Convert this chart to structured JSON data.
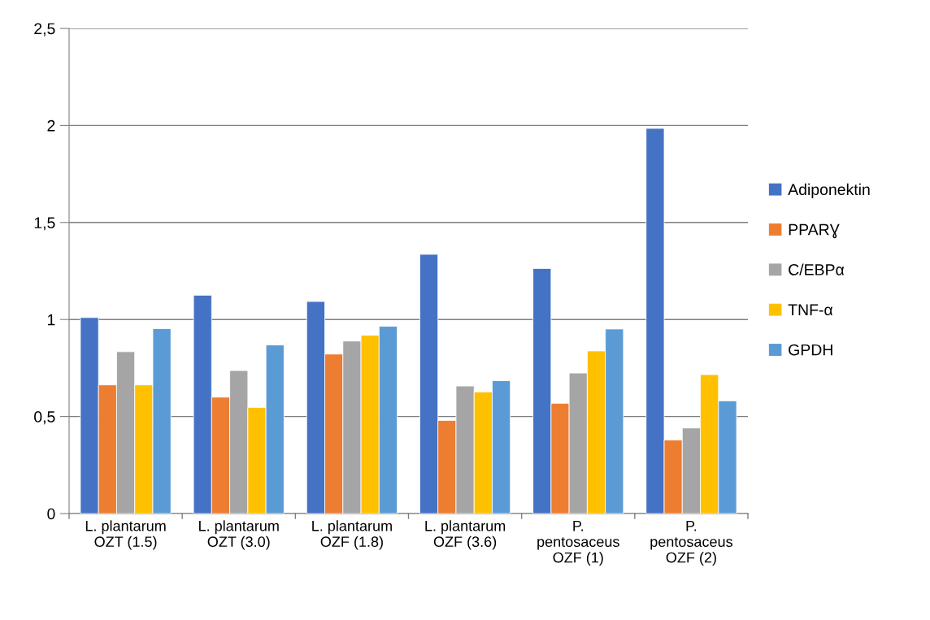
{
  "chart_data": {
    "type": "bar",
    "categories": [
      "L. plantarum\nOZT (1.5)",
      "L. plantarum\nOZT (3.0)",
      "L. plantarum\nOZF (1.8)",
      "L. plantarum\nOZF (3.6)",
      "P.\npentosaceus\nOZF (1)",
      "P.\npentosaceus\nOZF (2)"
    ],
    "series": [
      {
        "name": "Adiponektin",
        "color": "#4472c4",
        "values": [
          1.01,
          1.125,
          1.093,
          1.336,
          1.263,
          1.985
        ]
      },
      {
        "name": "PPARƔ",
        "color": "#ed7d31",
        "values": [
          0.663,
          0.6,
          0.822,
          0.48,
          0.568,
          0.379
        ]
      },
      {
        "name": "C/EBPα",
        "color": "#a5a5a5",
        "values": [
          0.834,
          0.737,
          0.889,
          0.657,
          0.724,
          0.441
        ]
      },
      {
        "name": "TNF-α",
        "color": "#ffc000",
        "values": [
          0.663,
          0.547,
          0.919,
          0.627,
          0.838,
          0.716
        ]
      },
      {
        "name": "GPDH",
        "color": "#5b9bd5",
        "values": [
          0.953,
          0.869,
          0.965,
          0.685,
          0.951,
          0.581
        ]
      }
    ],
    "ylim": [
      0,
      2.5
    ],
    "yticks": [
      {
        "value": 0,
        "label": "0"
      },
      {
        "value": 0.5,
        "label": "0,5"
      },
      {
        "value": 1,
        "label": "1"
      },
      {
        "value": 1.5,
        "label": "1,5"
      },
      {
        "value": 2,
        "label": "2"
      },
      {
        "value": 2.5,
        "label": "2,5"
      }
    ],
    "grid": "y",
    "legend": "right"
  }
}
